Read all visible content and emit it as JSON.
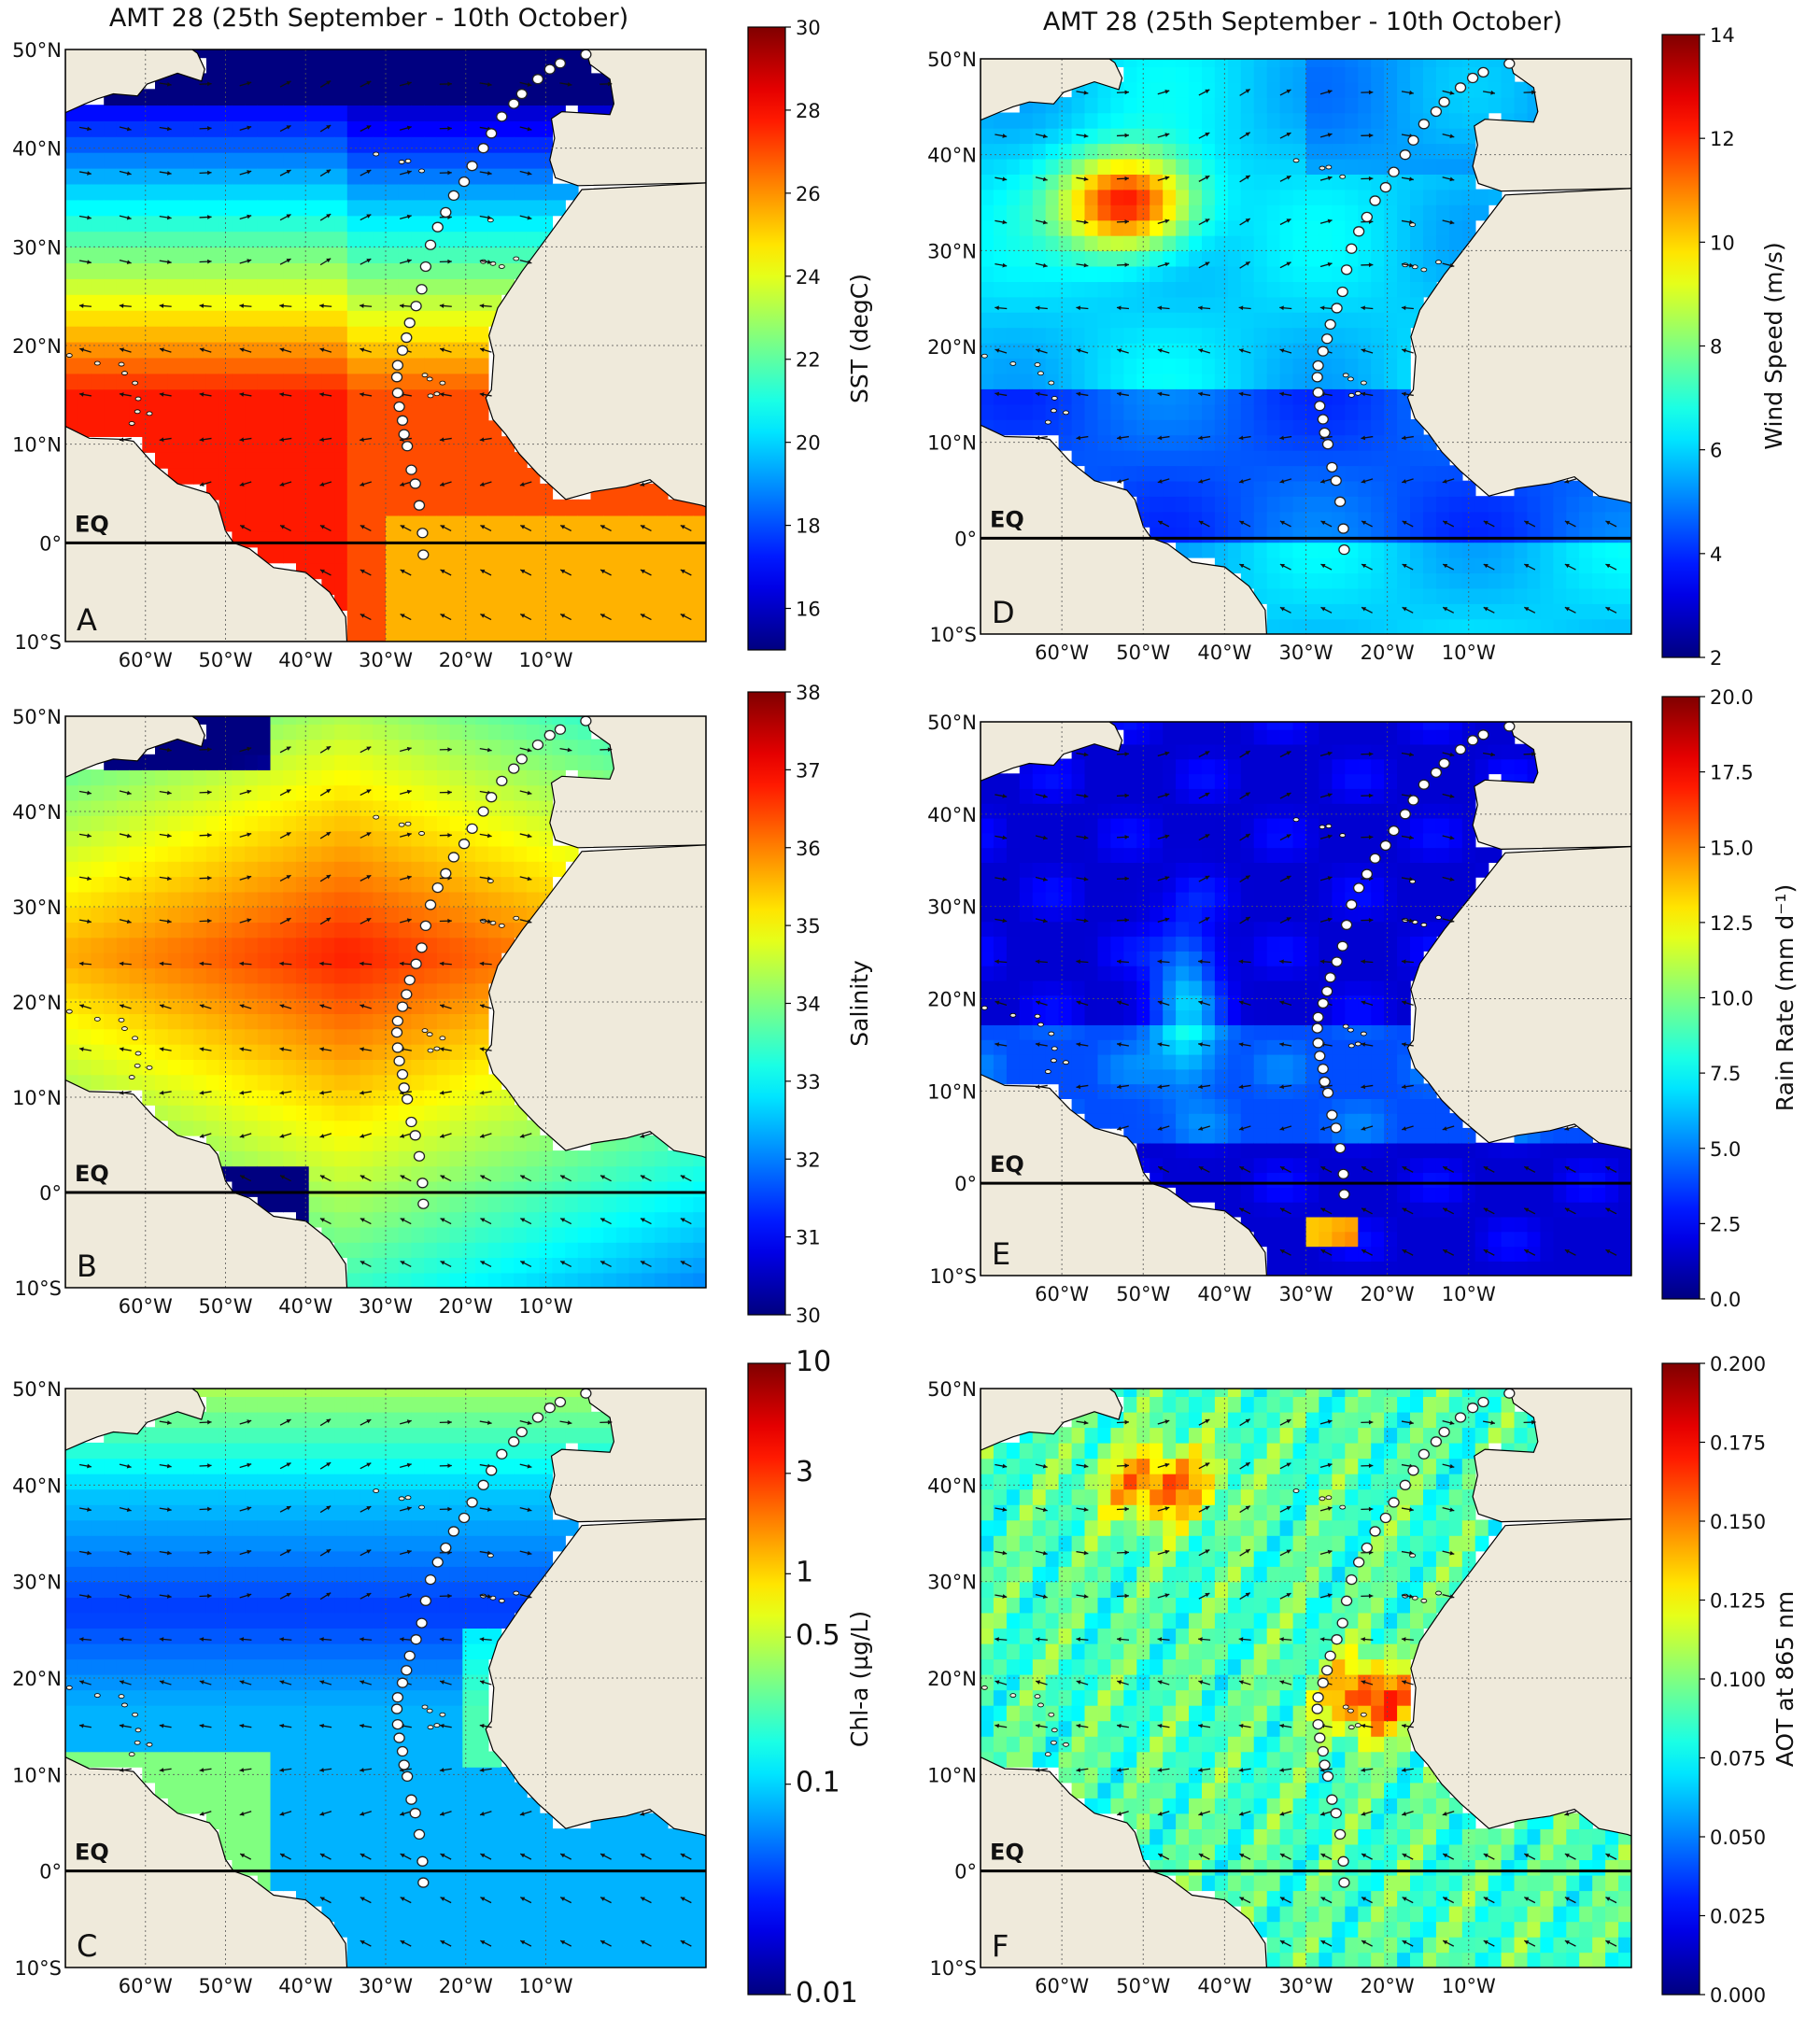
{
  "figure": {
    "titles": [
      "AMT 28 (25th September - 10th October)",
      "AMT 28 (25th September - 10th October)"
    ]
  },
  "colormap": "jet",
  "colors": {
    "land": "#efeadb",
    "border": "#000000",
    "station_fill": "#ffffff",
    "grid": "#555555"
  },
  "map_axes": {
    "lat_ticks": [
      "50°N",
      "40°N",
      "30°N",
      "20°N",
      "10°N",
      "0°",
      "10°S"
    ],
    "lon_ticks": [
      "60°W",
      "50°W",
      "40°W",
      "30°W",
      "20°W",
      "10°W"
    ],
    "equator_label": "EQ"
  },
  "chart_data": [
    {
      "id": "A",
      "type": "heatmap",
      "panel_letter": "A",
      "variable": "SST",
      "colorbar_label": "SST (degC)",
      "colorbar_range": [
        15,
        30
      ],
      "colorbar_ticks": [
        "30",
        "28",
        "26",
        "24",
        "22",
        "20",
        "18",
        "16"
      ],
      "colorbar_tick_values": [
        30,
        28,
        26,
        24,
        22,
        20,
        18,
        16
      ],
      "lon_range": [
        -70,
        10
      ],
      "lat_range": [
        -10,
        50
      ],
      "grid": true
    },
    {
      "id": "D",
      "type": "heatmap",
      "panel_letter": "D",
      "variable": "Wind speed",
      "colorbar_label": "Wind Speed (m/s)",
      "colorbar_range": [
        2,
        14
      ],
      "colorbar_ticks": [
        "14",
        "12",
        "10",
        "8",
        "6",
        "4",
        "2"
      ],
      "colorbar_tick_values": [
        14,
        12,
        10,
        8,
        6,
        4,
        2
      ],
      "lon_range": [
        -70,
        10
      ],
      "lat_range": [
        -10,
        50
      ],
      "grid": true
    },
    {
      "id": "B",
      "type": "heatmap",
      "panel_letter": "B",
      "variable": "Salinity",
      "colorbar_label": "Salinity",
      "colorbar_range": [
        30,
        38
      ],
      "colorbar_ticks": [
        "38",
        "37",
        "36",
        "35",
        "34",
        "33",
        "32",
        "31",
        "30"
      ],
      "colorbar_tick_values": [
        38,
        37,
        36,
        35,
        34,
        33,
        32,
        31,
        30
      ],
      "lon_range": [
        -70,
        10
      ],
      "lat_range": [
        -10,
        50
      ],
      "grid": true
    },
    {
      "id": "E",
      "type": "heatmap",
      "panel_letter": "E",
      "variable": "Rain rate",
      "colorbar_label": "Rain Rate (mm d⁻¹)",
      "colorbar_range": [
        0,
        20
      ],
      "colorbar_ticks": [
        "20.0",
        "17.5",
        "15.0",
        "12.5",
        "10.0",
        "7.5",
        "5.0",
        "2.5",
        "0.0"
      ],
      "colorbar_tick_values": [
        20,
        17.5,
        15,
        12.5,
        10,
        7.5,
        5,
        2.5,
        0
      ],
      "lon_range": [
        -70,
        10
      ],
      "lat_range": [
        -10,
        50
      ],
      "grid": true
    },
    {
      "id": "C",
      "type": "heatmap",
      "panel_letter": "C",
      "variable": "Chl-a",
      "colorbar_label": "Chl-a (µg/L)",
      "colorbar_range": [
        0.01,
        10
      ],
      "colorbar_scale": "log",
      "colorbar_ticks": [
        "10",
        "3",
        "1",
        "0.5",
        "0.1",
        "0.01"
      ],
      "colorbar_tick_values": [
        10,
        3,
        1,
        0.5,
        0.1,
        0.01
      ],
      "lon_range": [
        -70,
        10
      ],
      "lat_range": [
        -10,
        50
      ],
      "grid": true
    },
    {
      "id": "F",
      "type": "heatmap",
      "panel_letter": "F",
      "variable": "AOT",
      "colorbar_label": "AOT at 865 nm",
      "colorbar_range": [
        0,
        0.2
      ],
      "colorbar_ticks": [
        "0.200",
        "0.175",
        "0.150",
        "0.125",
        "0.100",
        "0.075",
        "0.050",
        "0.025",
        "0.000"
      ],
      "colorbar_tick_values": [
        0.2,
        0.175,
        0.15,
        0.125,
        0.1,
        0.075,
        0.05,
        0.025,
        0
      ],
      "lon_range": [
        -70,
        10
      ],
      "lat_range": [
        -10,
        50
      ],
      "grid": true
    }
  ],
  "cruise_track": [
    [
      -5.0,
      49.5
    ],
    [
      -8.2,
      48.6
    ],
    [
      -9.5,
      48.0
    ],
    [
      -11.0,
      47.0
    ],
    [
      -13.0,
      45.5
    ],
    [
      -14.0,
      44.5
    ],
    [
      -15.5,
      43.2
    ],
    [
      -16.8,
      41.5
    ],
    [
      -17.8,
      40.0
    ],
    [
      -19.2,
      38.2
    ],
    [
      -20.2,
      36.6
    ],
    [
      -21.5,
      35.2
    ],
    [
      -22.5,
      33.5
    ],
    [
      -23.5,
      32.0
    ],
    [
      -24.4,
      30.2
    ],
    [
      -25.0,
      28.0
    ],
    [
      -25.5,
      25.7
    ],
    [
      -26.2,
      24.0
    ],
    [
      -27.0,
      22.3
    ],
    [
      -27.4,
      20.8
    ],
    [
      -27.9,
      19.5
    ],
    [
      -28.5,
      18.0
    ],
    [
      -28.6,
      16.8
    ],
    [
      -28.5,
      15.2
    ],
    [
      -28.3,
      13.8
    ],
    [
      -27.9,
      12.4
    ],
    [
      -27.7,
      11.0
    ],
    [
      -27.3,
      9.8
    ],
    [
      -26.8,
      7.4
    ],
    [
      -26.3,
      6.0
    ],
    [
      -25.8,
      3.8
    ],
    [
      -25.4,
      1.0
    ],
    [
      -25.3,
      -1.2
    ]
  ]
}
